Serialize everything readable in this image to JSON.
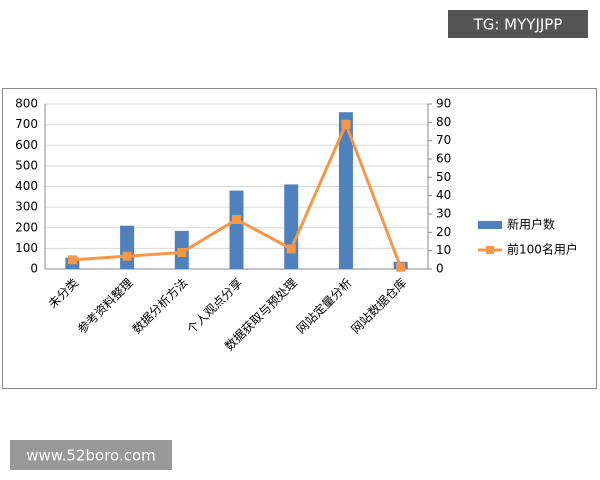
{
  "chart_data": {
    "type": "bar",
    "annotations": [
      "TG: MYYJJPP",
      "www.52boro.com"
    ],
    "categories": [
      "未分类",
      "参考资料整理",
      "数据分析方法",
      "个人观点分享",
      "数据获取与预处理",
      "网站定量分析",
      "网站数据仓库"
    ],
    "series": [
      {
        "name": "新用户数",
        "type": "bar",
        "color": "#4f81bd",
        "values": [
          55,
          210,
          185,
          380,
          410,
          760,
          35
        ]
      },
      {
        "name": "前100名用户",
        "type": "line",
        "axis": "y2",
        "color": "#f79646",
        "values": [
          5,
          7,
          9,
          27,
          11,
          79,
          1
        ]
      }
    ],
    "ylim": [
      0,
      800
    ],
    "yticks": [
      0,
      100,
      200,
      300,
      400,
      500,
      600,
      700,
      800
    ],
    "y2lim": [
      0,
      90
    ],
    "y2ticks": [
      0,
      10,
      20,
      30,
      40,
      50,
      60,
      70,
      80,
      90
    ],
    "grid": true,
    "legend": "right"
  }
}
